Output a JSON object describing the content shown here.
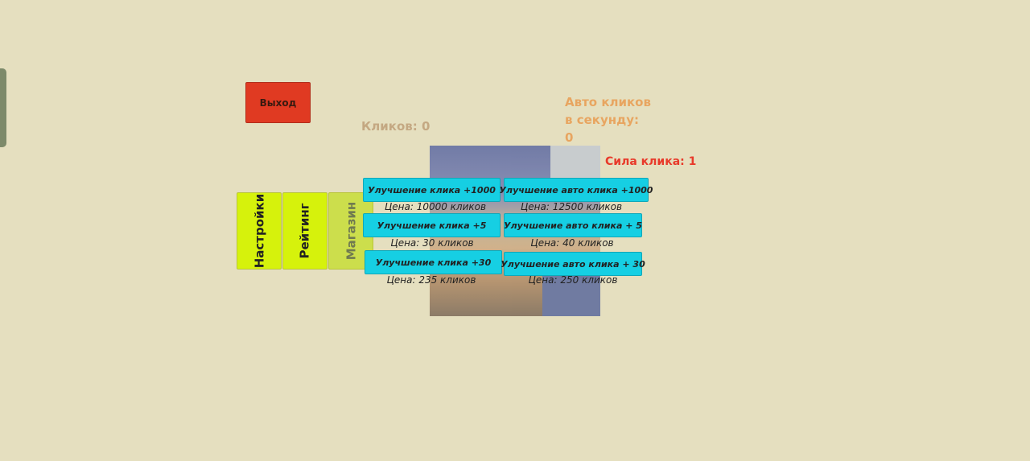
{
  "exit_label": "Выход",
  "clicks": "Кликов: 0",
  "auto_clicks": {
    "line1": "Авто кликов",
    "line2": "в секунду:",
    "value": "0"
  },
  "click_power": "Сила клика: 1",
  "tabs": [
    "Настройки",
    "Рейтинг",
    "Магазин"
  ],
  "upgrades": [
    {
      "label": "Улучшение клика +1000",
      "price": "Цена: 10000 кликов"
    },
    {
      "label": "Улучшение клика +5",
      "price": "Цена: 30 кликов"
    },
    {
      "label": "Улучшение клика +30",
      "price": "Цена: 235 кликов"
    },
    {
      "label": "Улучшение авто клика +1000",
      "price": "Цена: 12500 кликов"
    },
    {
      "label": "Улучшение авто клика + 5",
      "price": "Цена: 40 кликов"
    },
    {
      "label": "Улучшение авто клика + 30",
      "price": "Цена: 250 кликов"
    }
  ],
  "colors": {
    "background": "#e5dfbf",
    "button": "#16cfe3",
    "exit": "#e03a22",
    "tab": "#d6f20c"
  }
}
